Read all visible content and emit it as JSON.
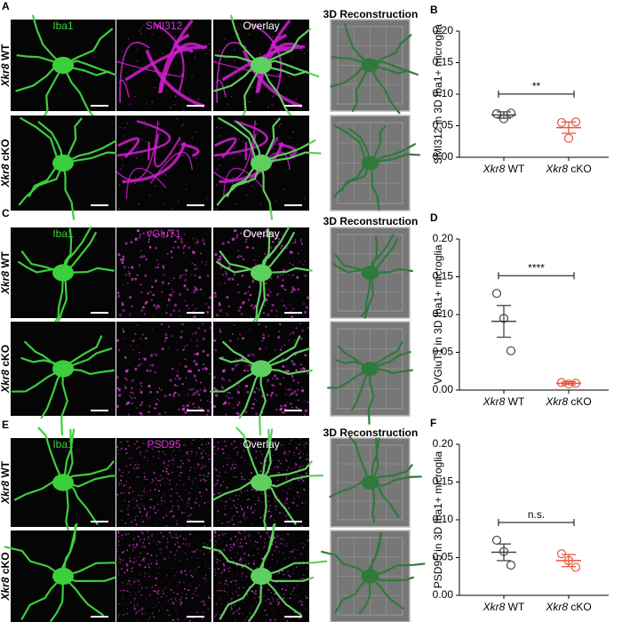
{
  "image_panels": [
    {
      "letter": "A",
      "columns": [
        "Iba1",
        "SMI312",
        "Overlay",
        "3D Reconstruction"
      ],
      "rows": [
        "Xkr8 WT",
        "Xkr8 cKO"
      ]
    },
    {
      "letter": "C",
      "columns": [
        "Iba1",
        "vGluT1",
        "Overlay",
        "3D Reconstruction"
      ],
      "rows": [
        "Xkr8 WT",
        "Xkr8 cKO"
      ]
    },
    {
      "letter": "E",
      "columns": [
        "Iba1",
        "PSD95",
        "Overlay",
        "3D Reconstruction"
      ],
      "rows": [
        "Xkr8 WT",
        "Xkr8 cKO"
      ]
    }
  ],
  "chart_data": [
    {
      "type": "dot",
      "panel": "B",
      "ylabel": "SMI312 in 3D Iba1+ microglia",
      "significance": "**",
      "ylim": [
        0,
        0.2
      ],
      "yticks": [
        {
          "value": 0,
          "label": "0.00"
        },
        {
          "value": 0.05,
          "label": "0.05"
        },
        {
          "value": 0.1,
          "label": "0.10"
        },
        {
          "value": 0.15,
          "label": "0.15"
        },
        {
          "value": 0.2,
          "label": "0.20"
        }
      ],
      "groups": [
        {
          "label": "Xkr8 WT",
          "color": "#444444",
          "values": [
            0.069,
            0.061,
            0.07
          ],
          "mean": 0.067,
          "error": 0.005
        },
        {
          "label": "Xkr8 cKO",
          "color": "#e8553a",
          "values": [
            0.055,
            0.03,
            0.056
          ],
          "mean": 0.047,
          "error": 0.009
        }
      ]
    },
    {
      "type": "dot",
      "panel": "D",
      "ylabel": "VGluT1 in 3D Iba1+ microglia",
      "significance": "****",
      "ylim": [
        0,
        0.2
      ],
      "yticks": [
        {
          "value": 0,
          "label": "0.00"
        },
        {
          "value": 0.05,
          "label": "0.05"
        },
        {
          "value": 0.1,
          "label": "0.10"
        },
        {
          "value": 0.15,
          "label": "0.15"
        },
        {
          "value": 0.2,
          "label": "0.20"
        }
      ],
      "groups": [
        {
          "label": "Xkr8 WT",
          "color": "#444444",
          "values": [
            0.128,
            0.095,
            0.052
          ],
          "mean": 0.091,
          "error": 0.021
        },
        {
          "label": "Xkr8 cKO",
          "color": "#e8553a",
          "values": [
            0.01,
            0.008,
            0.009
          ],
          "mean": 0.009,
          "error": 0.002
        }
      ]
    },
    {
      "type": "dot",
      "panel": "F",
      "ylabel": "PSD95 in 3D Iba1+ microglia",
      "significance": "n.s.",
      "ylim": [
        0,
        0.2
      ],
      "yticks": [
        {
          "value": 0,
          "label": "0.00"
        },
        {
          "value": 0.05,
          "label": "0.05"
        },
        {
          "value": 0.1,
          "label": "0.10"
        },
        {
          "value": 0.15,
          "label": "0.15"
        },
        {
          "value": 0.2,
          "label": "0.20"
        }
      ],
      "groups": [
        {
          "label": "Xkr8 WT",
          "color": "#444444",
          "values": [
            0.073,
            0.058,
            0.04
          ],
          "mean": 0.057,
          "error": 0.011
        },
        {
          "label": "Xkr8 cKO",
          "color": "#e8553a",
          "values": [
            0.055,
            0.046,
            0.037
          ],
          "mean": 0.046,
          "error": 0.008
        }
      ]
    }
  ]
}
